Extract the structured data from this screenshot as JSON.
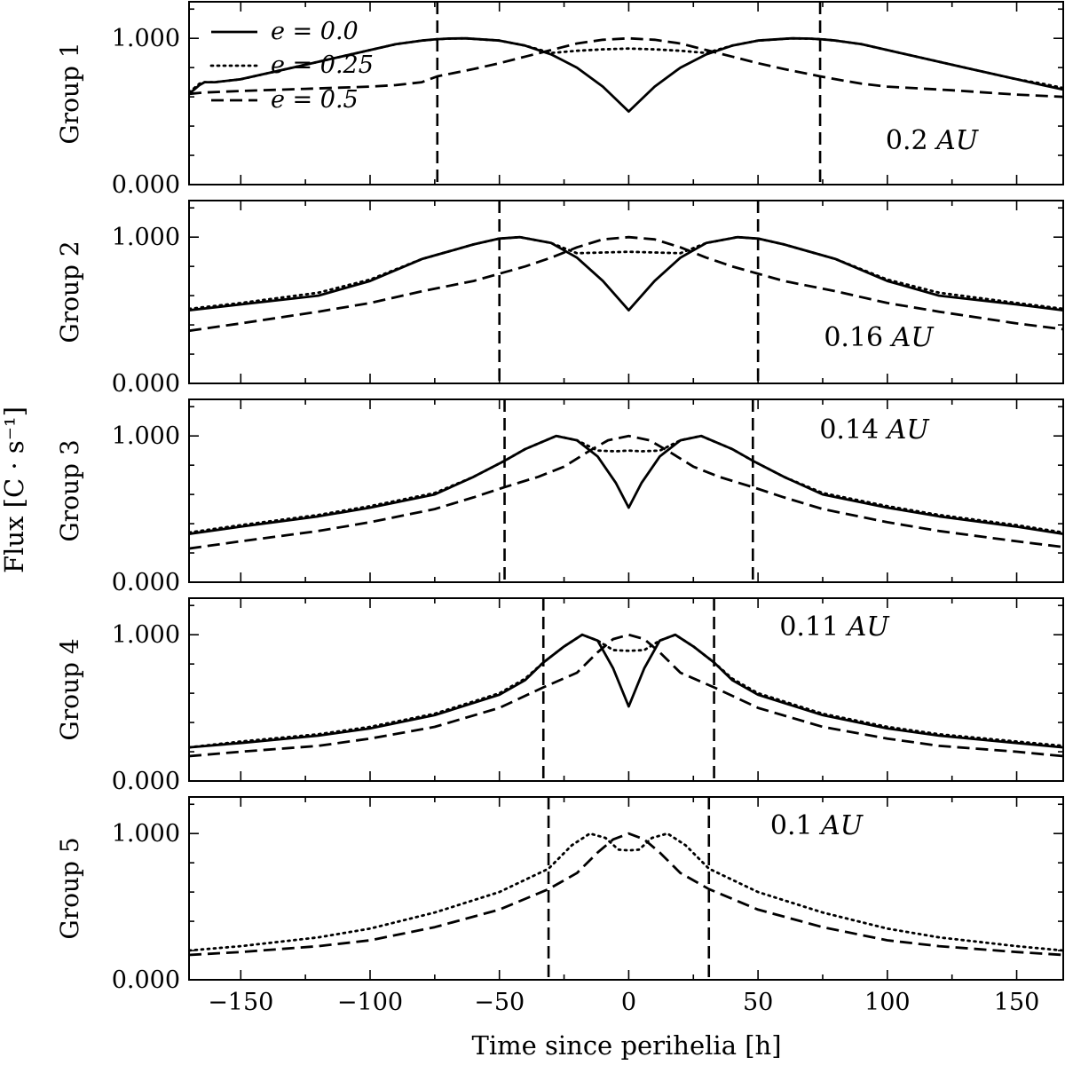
{
  "chart_data": {
    "type": "line",
    "xlabel": "Time since perihelia [h]",
    "ylabel": "Flux [C · s⁻¹]",
    "xlim": [
      -170,
      168
    ],
    "ylim": [
      0,
      1.25
    ],
    "x_ticks": [
      -150,
      -100,
      -50,
      0,
      50,
      100,
      150
    ],
    "x_tick_labels": [
      "−150",
      "−100",
      "−50",
      "0",
      "50",
      "100",
      "150"
    ],
    "y_ticks": [
      0,
      1
    ],
    "y_tick_labels": [
      "0.000",
      "1.000"
    ],
    "grid": false,
    "legend": {
      "placement": "top-left of first panel",
      "entries": [
        {
          "label": "e = 0.0",
          "style": "solid"
        },
        {
          "label": "e = 0.25",
          "style": "dotted"
        },
        {
          "label": "e = 0.5",
          "style": "dashed"
        }
      ]
    },
    "panels": [
      {
        "ylabel": "Group 1",
        "annotation": "0.2 AU",
        "vlines": [
          -74,
          74
        ],
        "series": [
          {
            "style": "solid",
            "x": [
              -170,
              -166,
              -164,
              -160,
              -150,
              -140,
              -130,
              -120,
              -110,
              -100,
              -90,
              -80,
              -75,
              -70,
              -63,
              -50,
              -40,
              -30,
              -20,
              -10,
              0,
              10,
              20,
              30,
              40,
              50,
              63,
              70,
              75,
              80,
              90,
              100,
              110,
              120,
              130,
              140,
              150,
              160,
              168
            ],
            "y": [
              0.62,
              0.68,
              0.7,
              0.7,
              0.72,
              0.76,
              0.8,
              0.84,
              0.88,
              0.92,
              0.96,
              0.985,
              0.993,
              0.998,
              1.0,
              0.985,
              0.95,
              0.89,
              0.8,
              0.67,
              0.5,
              0.67,
              0.8,
              0.89,
              0.95,
              0.985,
              1.0,
              0.998,
              0.993,
              0.985,
              0.96,
              0.92,
              0.88,
              0.84,
              0.8,
              0.76,
              0.72,
              0.68,
              0.65
            ]
          },
          {
            "style": "dotted",
            "x": [
              -170,
              -166,
              -164,
              -160,
              -150,
              -140,
              -130,
              -120,
              -110,
              -100,
              -90,
              -80,
              -75,
              -70,
              -63,
              -50,
              -40,
              -30,
              -20,
              -10,
              0,
              10,
              20,
              30,
              40,
              50,
              63,
              70,
              75,
              80,
              90,
              100,
              110,
              120,
              130,
              140,
              150,
              160,
              168
            ],
            "y": [
              0.63,
              0.69,
              0.7,
              0.7,
              0.72,
              0.76,
              0.8,
              0.84,
              0.88,
              0.92,
              0.96,
              0.985,
              0.993,
              0.998,
              1.0,
              0.985,
              0.95,
              0.9,
              0.915,
              0.925,
              0.93,
              0.925,
              0.915,
              0.9,
              0.95,
              0.985,
              1.0,
              0.998,
              0.993,
              0.985,
              0.96,
              0.92,
              0.88,
              0.84,
              0.8,
              0.76,
              0.72,
              0.69,
              0.66
            ]
          },
          {
            "style": "dashed",
            "x": [
              -170,
              -164,
              -150,
              -125,
              -100,
              -90,
              -80,
              -74,
              -60,
              -50,
              -40,
              -30,
              -20,
              -10,
              0,
              10,
              20,
              30,
              40,
              50,
              60,
              74,
              80,
              90,
              100,
              125,
              150,
              168
            ],
            "y": [
              0.62,
              0.63,
              0.64,
              0.655,
              0.67,
              0.68,
              0.7,
              0.74,
              0.79,
              0.83,
              0.875,
              0.92,
              0.965,
              0.99,
              1.0,
              0.99,
              0.965,
              0.92,
              0.875,
              0.83,
              0.79,
              0.74,
              0.72,
              0.69,
              0.67,
              0.645,
              0.615,
              0.6
            ]
          }
        ]
      },
      {
        "ylabel": "Group 2",
        "annotation": "0.16 AU",
        "vlines": [
          -50,
          50
        ],
        "series": [
          {
            "style": "solid",
            "x": [
              -170,
              -150,
              -120,
              -100,
              -80,
              -60,
              -50,
              -42,
              -30,
              -20,
              -10,
              0,
              10,
              20,
              30,
              42,
              50,
              60,
              80,
              100,
              120,
              150,
              168
            ],
            "y": [
              0.5,
              0.54,
              0.6,
              0.7,
              0.85,
              0.95,
              0.99,
              1.0,
              0.96,
              0.86,
              0.7,
              0.5,
              0.7,
              0.86,
              0.96,
              1.0,
              0.99,
              0.95,
              0.85,
              0.7,
              0.6,
              0.54,
              0.5
            ]
          },
          {
            "style": "dotted",
            "x": [
              -170,
              -150,
              -120,
              -100,
              -80,
              -60,
              -50,
              -42,
              -30,
              -20,
              -10,
              0,
              10,
              20,
              30,
              42,
              50,
              60,
              80,
              100,
              120,
              150,
              168
            ],
            "y": [
              0.51,
              0.55,
              0.62,
              0.71,
              0.85,
              0.95,
              0.99,
              1.0,
              0.96,
              0.89,
              0.895,
              0.9,
              0.895,
              0.89,
              0.96,
              1.0,
              0.99,
              0.95,
              0.85,
              0.71,
              0.62,
              0.55,
              0.51
            ]
          },
          {
            "style": "dashed",
            "x": [
              -170,
              -150,
              -120,
              -100,
              -80,
              -60,
              -50,
              -40,
              -30,
              -20,
              -10,
              0,
              10,
              20,
              30,
              40,
              50,
              60,
              80,
              100,
              120,
              150,
              168
            ],
            "y": [
              0.36,
              0.41,
              0.49,
              0.55,
              0.63,
              0.7,
              0.75,
              0.8,
              0.86,
              0.93,
              0.985,
              1.0,
              0.985,
              0.93,
              0.86,
              0.8,
              0.75,
              0.7,
              0.63,
              0.55,
              0.49,
              0.41,
              0.37
            ]
          }
        ]
      },
      {
        "ylabel": "Group 3",
        "annotation": "0.14 AU",
        "vlines": [
          -48,
          48
        ],
        "series": [
          {
            "style": "solid",
            "x": [
              -170,
              -150,
              -120,
              -100,
              -75,
              -60,
              -48,
              -40,
              -28,
              -20,
              -12,
              -5,
              0,
              5,
              12,
              20,
              28,
              40,
              48,
              60,
              75,
              100,
              120,
              150,
              168
            ],
            "y": [
              0.33,
              0.38,
              0.45,
              0.51,
              0.6,
              0.72,
              0.83,
              0.91,
              1.0,
              0.97,
              0.86,
              0.68,
              0.51,
              0.68,
              0.86,
              0.97,
              1.0,
              0.91,
              0.83,
              0.72,
              0.6,
              0.51,
              0.45,
              0.38,
              0.33
            ]
          },
          {
            "style": "dotted",
            "x": [
              -170,
              -150,
              -120,
              -100,
              -75,
              -60,
              -48,
              -40,
              -28,
              -20,
              -12,
              -5,
              0,
              5,
              12,
              20,
              28,
              40,
              48,
              60,
              75,
              100,
              120,
              150,
              168
            ],
            "y": [
              0.34,
              0.39,
              0.46,
              0.52,
              0.61,
              0.72,
              0.83,
              0.91,
              1.0,
              0.97,
              0.9,
              0.895,
              0.9,
              0.895,
              0.9,
              0.97,
              1.0,
              0.91,
              0.83,
              0.72,
              0.61,
              0.52,
              0.46,
              0.39,
              0.34
            ]
          },
          {
            "style": "dashed",
            "x": [
              -170,
              -150,
              -120,
              -100,
              -75,
              -60,
              -48,
              -35,
              -25,
              -15,
              -8,
              0,
              8,
              15,
              25,
              35,
              48,
              60,
              75,
              100,
              120,
              150,
              168
            ],
            "y": [
              0.23,
              0.28,
              0.35,
              0.41,
              0.5,
              0.58,
              0.65,
              0.72,
              0.79,
              0.9,
              0.97,
              1.0,
              0.97,
              0.9,
              0.79,
              0.72,
              0.65,
              0.58,
              0.5,
              0.41,
              0.35,
              0.28,
              0.24
            ]
          }
        ]
      },
      {
        "ylabel": "Group 4",
        "annotation": "0.11 AU",
        "vlines": [
          -33,
          33
        ],
        "series": [
          {
            "style": "solid",
            "x": [
              -170,
              -150,
              -120,
              -100,
              -75,
              -50,
              -40,
              -33,
              -25,
              -18,
              -12,
              -6,
              0,
              6,
              12,
              18,
              25,
              33,
              40,
              50,
              75,
              100,
              120,
              150,
              168
            ],
            "y": [
              0.23,
              0.26,
              0.31,
              0.36,
              0.45,
              0.59,
              0.69,
              0.81,
              0.92,
              1.0,
              0.96,
              0.77,
              0.51,
              0.77,
              0.96,
              1.0,
              0.92,
              0.81,
              0.69,
              0.59,
              0.45,
              0.36,
              0.31,
              0.26,
              0.23
            ]
          },
          {
            "style": "dotted",
            "x": [
              -170,
              -150,
              -120,
              -100,
              -75,
              -50,
              -40,
              -33,
              -25,
              -18,
              -12,
              -6,
              0,
              6,
              12,
              18,
              25,
              33,
              40,
              50,
              75,
              100,
              120,
              150,
              168
            ],
            "y": [
              0.23,
              0.27,
              0.32,
              0.37,
              0.46,
              0.6,
              0.7,
              0.81,
              0.92,
              1.0,
              0.96,
              0.895,
              0.89,
              0.895,
              0.96,
              1.0,
              0.92,
              0.81,
              0.7,
              0.6,
              0.46,
              0.37,
              0.32,
              0.27,
              0.24
            ]
          },
          {
            "style": "dashed",
            "x": [
              -170,
              -150,
              -120,
              -100,
              -75,
              -50,
              -33,
              -20,
              -12,
              -6,
              0,
              6,
              12,
              20,
              33,
              50,
              75,
              100,
              120,
              150,
              168
            ],
            "y": [
              0.17,
              0.2,
              0.24,
              0.29,
              0.37,
              0.5,
              0.64,
              0.74,
              0.88,
              0.97,
              1.0,
              0.97,
              0.88,
              0.74,
              0.64,
              0.5,
              0.37,
              0.29,
              0.24,
              0.2,
              0.17
            ]
          }
        ]
      },
      {
        "ylabel": "Group 5",
        "annotation": "0.1 AU",
        "vlines": [
          -31,
          31
        ],
        "series": [
          {
            "style": "dotted",
            "x": [
              -170,
              -150,
              -120,
              -100,
              -75,
              -50,
              -31,
              -22,
              -15,
              -9,
              -4,
              0,
              4,
              9,
              15,
              22,
              31,
              50,
              75,
              100,
              120,
              150,
              168
            ],
            "y": [
              0.2,
              0.23,
              0.29,
              0.35,
              0.46,
              0.6,
              0.76,
              0.92,
              1.0,
              0.97,
              0.89,
              0.885,
              0.89,
              0.97,
              1.0,
              0.92,
              0.76,
              0.6,
              0.46,
              0.35,
              0.29,
              0.23,
              0.2
            ]
          },
          {
            "style": "dashed",
            "x": [
              -170,
              -150,
              -120,
              -100,
              -75,
              -50,
              -31,
              -20,
              -12,
              -6,
              0,
              6,
              12,
              20,
              31,
              50,
              75,
              100,
              120,
              150,
              168
            ],
            "y": [
              0.17,
              0.19,
              0.23,
              0.27,
              0.36,
              0.48,
              0.62,
              0.73,
              0.87,
              0.96,
              1.0,
              0.96,
              0.87,
              0.73,
              0.62,
              0.48,
              0.36,
              0.27,
              0.23,
              0.19,
              0.17
            ]
          }
        ]
      }
    ]
  }
}
